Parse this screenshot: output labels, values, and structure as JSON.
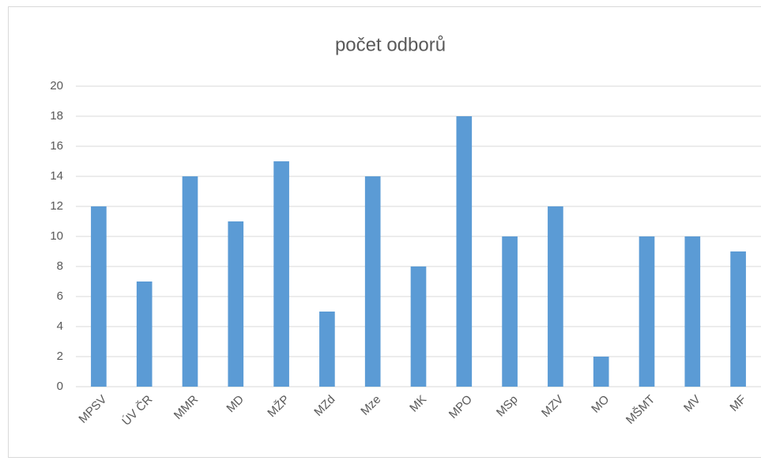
{
  "chart_data": {
    "type": "bar",
    "title": "počet odborů",
    "categories": [
      "MPSV",
      "ÚV ČR",
      "MMR",
      "MD",
      "MŽP",
      "MZd",
      "Mze",
      "MK",
      "MPO",
      "MSp",
      "MZV",
      "MO",
      "MŠMT",
      "MV",
      "MF"
    ],
    "values": [
      12,
      7,
      14,
      11,
      15,
      5,
      14,
      8,
      18,
      10,
      12,
      2,
      10,
      10,
      9
    ],
    "color": "#5b9bd5",
    "ylim": [
      0,
      20
    ],
    "yticks": [
      0,
      2,
      4,
      6,
      8,
      10,
      12,
      14,
      16,
      18,
      20
    ],
    "grid": true
  }
}
